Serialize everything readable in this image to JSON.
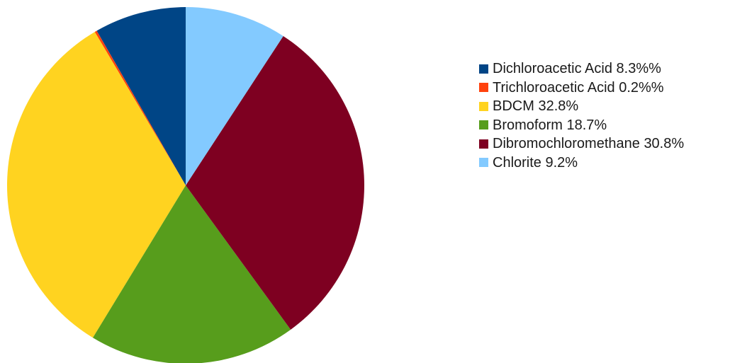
{
  "chart_data": {
    "type": "pie",
    "title": "",
    "slices": [
      {
        "label": "Dichloroacetic Acid 8.3%%",
        "value": 8.3,
        "color": "#004586"
      },
      {
        "label": "Trichloroacetic Acid 0.2%%",
        "value": 0.2,
        "color": "#ff420e"
      },
      {
        "label": "BDCM 32.8%",
        "value": 32.8,
        "color": "#ffd320"
      },
      {
        "label": "Bromoform 18.7%",
        "value": 18.7,
        "color": "#579d1c"
      },
      {
        "label": "Dibromochloromethane 30.8%",
        "value": 30.8,
        "color": "#7e0021"
      },
      {
        "label": "Chlorite 9.2%",
        "value": 9.2,
        "color": "#83caff"
      }
    ],
    "start_angle_deg": 0,
    "direction": "counterclockwise",
    "legend_position": "right"
  }
}
